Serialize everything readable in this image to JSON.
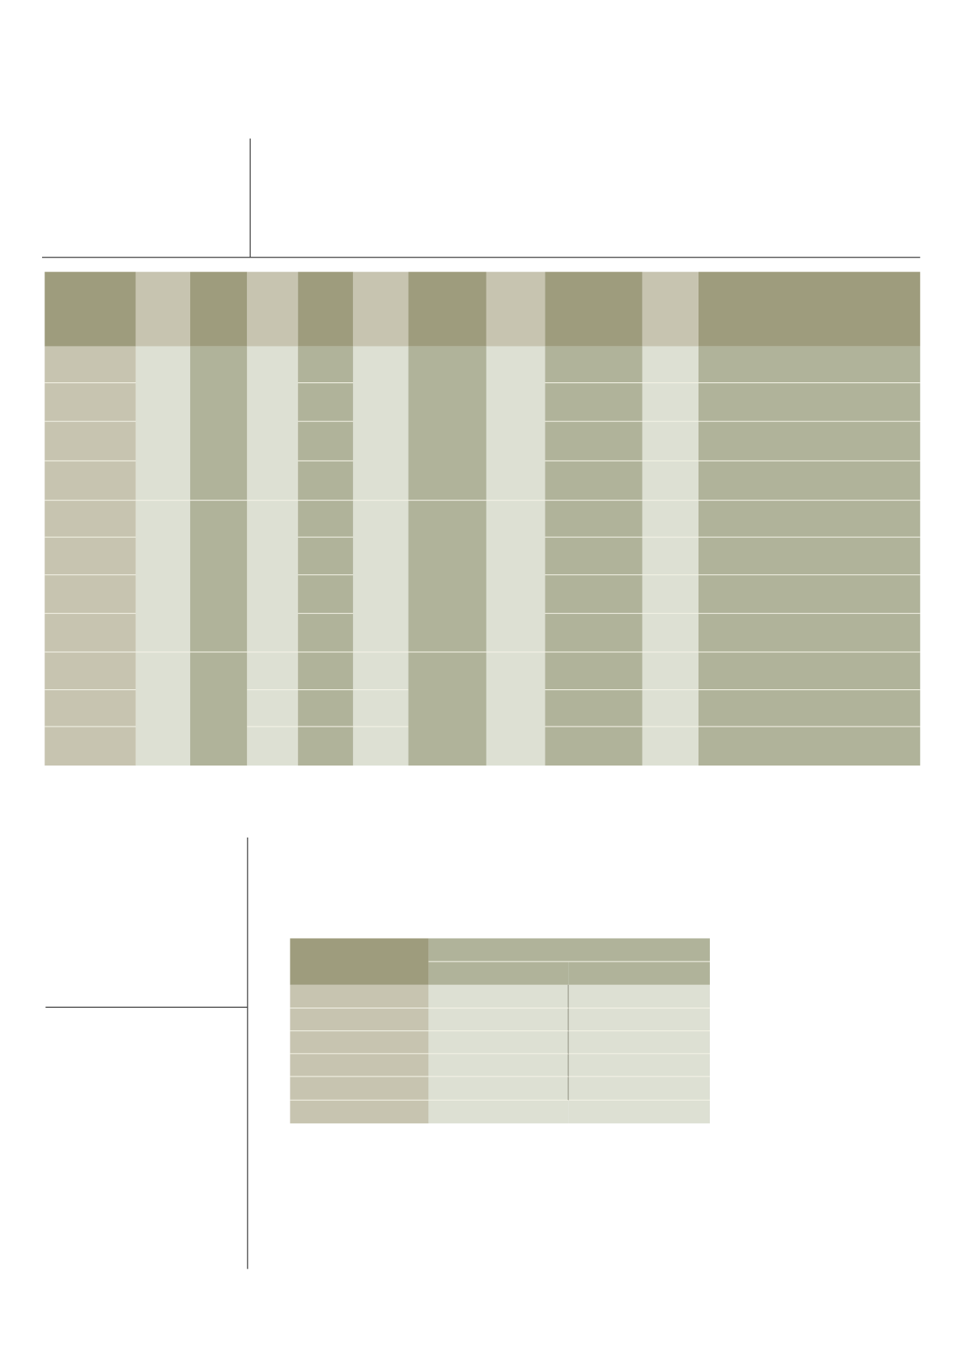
{
  "colors": {
    "header_dark": "#9e9c7d",
    "header_light": "#c7c4b0",
    "body_tan": "#c7c4b0",
    "body_pale": "#dde0d3",
    "body_mid": "#b0b39a",
    "rule": "#222222"
  },
  "tables": {
    "main_table": {
      "header_cells": 11,
      "body_rows": 11
    },
    "small_table": {
      "header_rows": 2,
      "body_rows": 6,
      "columns": 3
    }
  }
}
